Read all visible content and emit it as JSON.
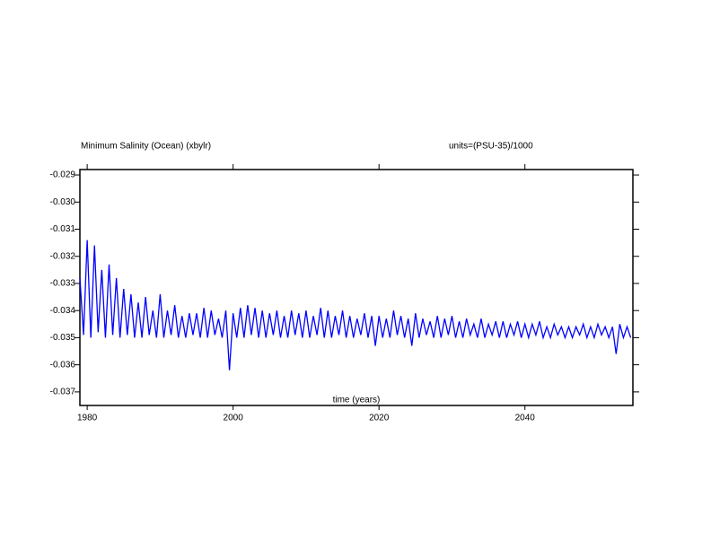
{
  "chart_data": {
    "type": "line",
    "title": "Minimum Salinity (Ocean) (xbylr)",
    "subtitle": "units=(PSU-35)/1000",
    "x_label": "time (years)",
    "xlim": [
      1979,
      2054.8
    ],
    "xticks": [
      1980,
      2000,
      2020,
      2040
    ],
    "ylim": [
      -0.0375,
      -0.0288
    ],
    "yticks": [
      -0.029,
      {
        "value": -0.03,
        "label": "-0.030"
      },
      -0.031,
      -0.032,
      -0.033,
      -0.034,
      -0.035,
      -0.036,
      -0.037
    ],
    "x": [
      1979,
      1979.5,
      1980,
      1980.5,
      1981,
      1981.5,
      1982,
      1982.5,
      1983,
      1983.5,
      1984,
      1984.5,
      1985,
      1985.5,
      1986,
      1986.5,
      1987,
      1987.5,
      1988,
      1988.5,
      1989,
      1989.5,
      1990,
      1990.5,
      1991,
      1991.5,
      1992,
      1992.5,
      1993,
      1993.5,
      1994,
      1994.5,
      1995,
      1995.5,
      1996,
      1996.5,
      1997,
      1997.5,
      1998,
      1998.5,
      1999,
      1999.5,
      2000,
      2000.5,
      2001,
      2001.5,
      2002,
      2002.5,
      2003,
      2003.5,
      2004,
      2004.5,
      2005,
      2005.5,
      2006,
      2006.5,
      2007,
      2007.5,
      2008,
      2008.5,
      2009,
      2009.5,
      2010,
      2010.5,
      2011,
      2011.5,
      2012,
      2012.5,
      2013,
      2013.5,
      2014,
      2014.5,
      2015,
      2015.5,
      2016,
      2016.5,
      2017,
      2017.5,
      2018,
      2018.5,
      2019,
      2019.5,
      2020,
      2020.5,
      2021,
      2021.5,
      2022,
      2022.5,
      2023,
      2023.5,
      2024,
      2024.5,
      2025,
      2025.5,
      2026,
      2026.5,
      2027,
      2027.5,
      2028,
      2028.5,
      2029,
      2029.5,
      2030,
      2030.5,
      2031,
      2031.5,
      2032,
      2032.5,
      2033,
      2033.5,
      2034,
      2034.5,
      2035,
      2035.5,
      2036,
      2036.5,
      2037,
      2037.5,
      2038,
      2038.5,
      2039,
      2039.5,
      2040,
      2040.5,
      2041,
      2041.5,
      2042,
      2042.5,
      2043,
      2043.5,
      2044,
      2044.5,
      2045,
      2045.5,
      2046,
      2046.5,
      2047,
      2047.5,
      2048,
      2048.5,
      2049,
      2049.5,
      2050,
      2050.5,
      2051,
      2051.5,
      2052,
      2052.5,
      2053,
      2053.5,
      2054,
      2054.5
    ],
    "series": [
      {
        "color": "#0000ff",
        "values": [
          -0.0328,
          -0.0349,
          -0.0314,
          -0.035,
          -0.0316,
          -0.0348,
          -0.0325,
          -0.035,
          -0.0323,
          -0.0349,
          -0.0328,
          -0.035,
          -0.0332,
          -0.0349,
          -0.0334,
          -0.035,
          -0.0337,
          -0.035,
          -0.0335,
          -0.0349,
          -0.034,
          -0.035,
          -0.0334,
          -0.035,
          -0.034,
          -0.0349,
          -0.0338,
          -0.035,
          -0.0342,
          -0.035,
          -0.0341,
          -0.0349,
          -0.0341,
          -0.035,
          -0.0339,
          -0.035,
          -0.034,
          -0.0349,
          -0.0343,
          -0.035,
          -0.034,
          -0.0362,
          -0.0341,
          -0.035,
          -0.0339,
          -0.035,
          -0.0338,
          -0.0349,
          -0.0339,
          -0.035,
          -0.034,
          -0.035,
          -0.0341,
          -0.0349,
          -0.034,
          -0.035,
          -0.0342,
          -0.035,
          -0.034,
          -0.0349,
          -0.0341,
          -0.035,
          -0.034,
          -0.035,
          -0.0342,
          -0.0349,
          -0.0339,
          -0.035,
          -0.034,
          -0.035,
          -0.0342,
          -0.0349,
          -0.034,
          -0.035,
          -0.0342,
          -0.035,
          -0.0343,
          -0.0349,
          -0.0341,
          -0.035,
          -0.0342,
          -0.0353,
          -0.0342,
          -0.035,
          -0.0343,
          -0.035,
          -0.034,
          -0.0349,
          -0.0342,
          -0.035,
          -0.0343,
          -0.0353,
          -0.0341,
          -0.035,
          -0.0343,
          -0.0349,
          -0.0344,
          -0.035,
          -0.0342,
          -0.035,
          -0.0343,
          -0.0349,
          -0.0342,
          -0.035,
          -0.0344,
          -0.035,
          -0.0343,
          -0.0349,
          -0.0345,
          -0.035,
          -0.0343,
          -0.035,
          -0.0345,
          -0.0349,
          -0.0344,
          -0.035,
          -0.0344,
          -0.035,
          -0.0345,
          -0.0349,
          -0.0344,
          -0.035,
          -0.0345,
          -0.035,
          -0.0345,
          -0.0349,
          -0.0344,
          -0.035,
          -0.0346,
          -0.035,
          -0.0345,
          -0.0349,
          -0.0346,
          -0.035,
          -0.0346,
          -0.035,
          -0.0346,
          -0.0349,
          -0.0345,
          -0.035,
          -0.0346,
          -0.035,
          -0.0345,
          -0.0349,
          -0.0346,
          -0.035,
          -0.0346,
          -0.0356,
          -0.0345,
          -0.035,
          -0.0346,
          -0.035
        ]
      }
    ]
  }
}
